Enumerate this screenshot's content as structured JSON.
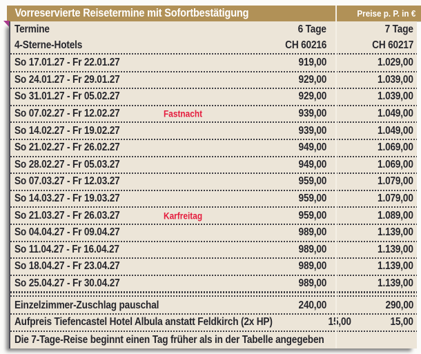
{
  "header": {
    "title": "Vorreservierte Reisetermine mit Sofortbestätigung",
    "price_unit": "Preise p. P. in €"
  },
  "table": {
    "head": {
      "termine": "Termine",
      "hotels": "4-Sterne-Hotels",
      "col6_label": "6 Tage",
      "col6_code": "CH 60216",
      "col7_label": "7 Tage",
      "col7_code": "CH 60217"
    },
    "rows": [
      {
        "date": "So 17.01.27 - Fr 22.01.27",
        "note": "",
        "p6": "919,00",
        "p7": "1.029,00"
      },
      {
        "date": "So 24.01.27 - Fr 29.01.27",
        "note": "",
        "p6": "929,00",
        "p7": "1.039,00"
      },
      {
        "date": "So 31.01.27 - Fr 05.02.27",
        "note": "",
        "p6": "929,00",
        "p7": "1.039,00"
      },
      {
        "date": "So 07.02.27 - Fr 12.02.27",
        "note": "Fastnacht",
        "p6": "939,00",
        "p7": "1.049,00"
      },
      {
        "date": "So 14.02.27 - Fr 19.02.27",
        "note": "",
        "p6": "939,00",
        "p7": "1.049,00"
      },
      {
        "date": "So 21.02.27 - Fr 26.02.27",
        "note": "",
        "p6": "949,00",
        "p7": "1.069,00"
      },
      {
        "date": "So 28.02.27 - Fr 05.03.27",
        "note": "",
        "p6": "949,00",
        "p7": "1.069,00"
      },
      {
        "date": "So 07.03.27 - Fr 12.03.27",
        "note": "",
        "p6": "959,00",
        "p7": "1.079,00"
      },
      {
        "date": "So 14.03.27 - Fr 19.03.27",
        "note": "",
        "p6": "959,00",
        "p7": "1.079,00"
      },
      {
        "date": "So 21.03.27 - Fr 26.03.27",
        "note": "Karfreitag",
        "p6": "959,00",
        "p7": "1.089,00"
      },
      {
        "date": "So 04.04.27 - Fr 09.04.27",
        "note": "",
        "p6": "989,00",
        "p7": "1.139,00"
      },
      {
        "date": "So 11.04.27 - Fr 16.04.27",
        "note": "",
        "p6": "989,00",
        "p7": "1.139,00"
      },
      {
        "date": "So 18.04.27 - Fr 23.04.27",
        "note": "",
        "p6": "989,00",
        "p7": "1.139,00"
      },
      {
        "date": "So 25.04.27 - Fr 30.04.27",
        "note": "",
        "p6": "989,00",
        "p7": "1.139,00"
      }
    ],
    "extras": [
      {
        "label": "Einzelzimmer-Zuschlag pauschal",
        "p6": "240,00",
        "p7": "290,00"
      },
      {
        "label": "Aufpreis Tiefencastel Hotel Albula anstatt Feldkirch (2x HP)",
        "p6": "15,00",
        "p7": "15,00"
      }
    ],
    "footnote": "Die 7-Tage-Reise beginnt einen Tag früher als in der Tabelle angegeben"
  },
  "colors": {
    "gold": "#b19157",
    "cream": "#ece5d8",
    "text": "#26262c",
    "holiday_red": "#e51b3d",
    "fold_magenta": "#a93a8e"
  }
}
